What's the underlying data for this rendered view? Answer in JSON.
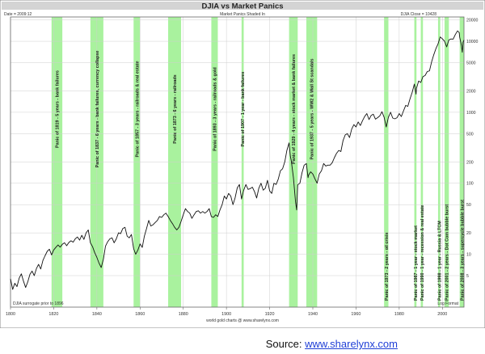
{
  "chart_data": {
    "type": "line",
    "title": "DJIA vs Market Panics",
    "subtitle": "Market Panics Shaded In",
    "date_label": "Date = 2009:12",
    "close_label": "DJIA Close = 10428",
    "footnote": "DJIA surrogate prior to 1896",
    "scale_label": "Log Format",
    "credit": "world gold charts @ www.sharelynx.com",
    "y_scale": "log",
    "xlim": [
      1800,
      2010
    ],
    "ylim": [
      1.8,
      22000
    ],
    "x_ticks": [
      {
        "value": 1800,
        "label": "1800"
      },
      {
        "value": 1820,
        "label": "1820"
      },
      {
        "value": 1840,
        "label": "1840"
      },
      {
        "value": 1860,
        "label": "1860"
      },
      {
        "value": 1880,
        "label": "1880"
      },
      {
        "value": 1900,
        "label": "1900"
      },
      {
        "value": 1920,
        "label": "1920"
      },
      {
        "value": 1940,
        "label": "1940"
      },
      {
        "value": 1960,
        "label": "1960"
      },
      {
        "value": 1980,
        "label": "1980"
      },
      {
        "value": 2000,
        "label": "2000"
      }
    ],
    "y_ticks": [
      {
        "value": 20000,
        "label": "20000"
      },
      {
        "value": 10000,
        "label": "10000"
      },
      {
        "value": 5000,
        "label": "5000"
      },
      {
        "value": 2000,
        "label": "2000"
      },
      {
        "value": 1000,
        "label": "1000"
      },
      {
        "value": 500,
        "label": "500"
      },
      {
        "value": 200,
        "label": "200"
      },
      {
        "value": 100,
        "label": "100"
      },
      {
        "value": 50,
        "label": "50"
      },
      {
        "value": 20,
        "label": "20"
      },
      {
        "value": 10,
        "label": "10"
      },
      {
        "value": 5,
        "label": "5"
      }
    ],
    "panics": [
      {
        "start": 1819,
        "end": 1824,
        "label": "Panic of 1819 - 5 years - bank failures"
      },
      {
        "start": 1837,
        "end": 1843,
        "label": "Panic of 1837 - 6 years - bank failures, currency collapse"
      },
      {
        "start": 1857,
        "end": 1860,
        "label": "Panic of 1857 - 3 years - railroads & real estate"
      },
      {
        "start": 1873,
        "end": 1879,
        "label": "Panic of 1873 - 6 years - railroads"
      },
      {
        "start": 1893,
        "end": 1896,
        "label": "Panic of 1893 - 3 years - railroads & gold"
      },
      {
        "start": 1907,
        "end": 1908,
        "label": "Panic of 1907 - 1 year - bank failures"
      },
      {
        "start": 1929,
        "end": 1933,
        "label": "Panic of 1929 - 4 years - stock market & bank failures"
      },
      {
        "start": 1937,
        "end": 1942,
        "label": "Panic of 1937 - 5 years - WW2 & Wall St scandals"
      },
      {
        "start": 1973,
        "end": 1975,
        "label": "Panic of 1973 - 2 years - oil crisis"
      },
      {
        "start": 1987,
        "end": 1988,
        "label": "Panic of 1987 - 1 year - stock market"
      },
      {
        "start": 1990,
        "end": 1991,
        "label": "Panic of 1990 - 1 year - recession & real estate"
      },
      {
        "start": 1998,
        "end": 1999,
        "label": "Panic of 1998 - 1 year - Russia & LTCM"
      },
      {
        "start": 2001,
        "end": 2003,
        "label": "Panic of 2001 - 2 years - Dot Com bubble burst"
      },
      {
        "start": 2008,
        "end": 2011,
        "label": "Panic of 2008 - 3 years - supercycle bubble burst"
      }
    ],
    "series": [
      {
        "points": [
          [
            1800,
            4.5
          ],
          [
            1801,
            3.2
          ],
          [
            1802,
            3.9
          ],
          [
            1803,
            3.5
          ],
          [
            1804,
            4.6
          ],
          [
            1805,
            5.3
          ],
          [
            1806,
            4.2
          ],
          [
            1807,
            3.4
          ],
          [
            1808,
            4.1
          ],
          [
            1809,
            5.2
          ],
          [
            1810,
            5.8
          ],
          [
            1811,
            5.0
          ],
          [
            1812,
            6.3
          ],
          [
            1813,
            7.2
          ],
          [
            1814,
            6.2
          ],
          [
            1815,
            8.2
          ],
          [
            1816,
            9.5
          ],
          [
            1817,
            11
          ],
          [
            1818,
            11.8
          ],
          [
            1819,
            9.8
          ],
          [
            1820,
            11.5
          ],
          [
            1821,
            12.5
          ],
          [
            1822,
            13.5
          ],
          [
            1823,
            12.6
          ],
          [
            1824,
            13.8
          ],
          [
            1825,
            14.5
          ],
          [
            1826,
            13.2
          ],
          [
            1827,
            14.6
          ],
          [
            1828,
            15.5
          ],
          [
            1829,
            14.8
          ],
          [
            1830,
            16.5
          ],
          [
            1831,
            17.5
          ],
          [
            1832,
            15.8
          ],
          [
            1833,
            18.5
          ],
          [
            1834,
            16.2
          ],
          [
            1835,
            20
          ],
          [
            1836,
            22
          ],
          [
            1837,
            14.5
          ],
          [
            1838,
            12.8
          ],
          [
            1839,
            10.5
          ],
          [
            1840,
            9.0
          ],
          [
            1841,
            7.5
          ],
          [
            1842,
            6.5
          ],
          [
            1843,
            8.5
          ],
          [
            1844,
            13
          ],
          [
            1845,
            15
          ],
          [
            1846,
            16.5
          ],
          [
            1847,
            17
          ],
          [
            1848,
            14.5
          ],
          [
            1849,
            16.5
          ],
          [
            1850,
            20
          ],
          [
            1851,
            19.5
          ],
          [
            1852,
            23
          ],
          [
            1853,
            24
          ],
          [
            1854,
            18
          ],
          [
            1855,
            17
          ],
          [
            1856,
            19
          ],
          [
            1857,
            12
          ],
          [
            1858,
            10
          ],
          [
            1859,
            11.5
          ],
          [
            1860,
            14
          ],
          [
            1861,
            12.5
          ],
          [
            1862,
            18
          ],
          [
            1863,
            23
          ],
          [
            1864,
            30
          ],
          [
            1865,
            25
          ],
          [
            1866,
            26
          ],
          [
            1867,
            28
          ],
          [
            1868,
            30
          ],
          [
            1869,
            34
          ],
          [
            1870,
            33
          ],
          [
            1871,
            36
          ],
          [
            1872,
            38
          ],
          [
            1873,
            34
          ],
          [
            1874,
            30
          ],
          [
            1875,
            27
          ],
          [
            1876,
            24
          ],
          [
            1877,
            22
          ],
          [
            1878,
            24
          ],
          [
            1879,
            29
          ],
          [
            1880,
            36
          ],
          [
            1881,
            44
          ],
          [
            1882,
            40
          ],
          [
            1883,
            38
          ],
          [
            1884,
            32
          ],
          [
            1885,
            36
          ],
          [
            1886,
            40
          ],
          [
            1887,
            41
          ],
          [
            1888,
            38
          ],
          [
            1889,
            40
          ],
          [
            1890,
            38
          ],
          [
            1891,
            40
          ],
          [
            1892,
            44
          ],
          [
            1893,
            34
          ],
          [
            1894,
            33
          ],
          [
            1895,
            36
          ],
          [
            1896,
            34
          ],
          [
            1897,
            42
          ],
          [
            1898,
            50
          ],
          [
            1899,
            66
          ],
          [
            1900,
            60
          ],
          [
            1901,
            72
          ],
          [
            1902,
            66
          ],
          [
            1903,
            50
          ],
          [
            1904,
            62
          ],
          [
            1905,
            86
          ],
          [
            1906,
            96
          ],
          [
            1907,
            60
          ],
          [
            1908,
            80
          ],
          [
            1909,
            96
          ],
          [
            1910,
            82
          ],
          [
            1911,
            84
          ],
          [
            1912,
            88
          ],
          [
            1913,
            76
          ],
          [
            1914,
            62
          ],
          [
            1915,
            85
          ],
          [
            1916,
            100
          ],
          [
            1917,
            80
          ],
          [
            1918,
            85
          ],
          [
            1919,
            110
          ],
          [
            1920,
            78
          ],
          [
            1921,
            72
          ],
          [
            1922,
            100
          ],
          [
            1923,
            96
          ],
          [
            1924,
            115
          ],
          [
            1925,
            150
          ],
          [
            1926,
            160
          ],
          [
            1927,
            200
          ],
          [
            1928,
            290
          ],
          [
            1929,
            370
          ],
          [
            1929.6,
            240
          ],
          [
            1930,
            210
          ],
          [
            1931,
            120
          ],
          [
            1932,
            55
          ],
          [
            1932.5,
            42
          ],
          [
            1933,
            95
          ],
          [
            1934,
            100
          ],
          [
            1935,
            140
          ],
          [
            1936,
            180
          ],
          [
            1937,
            190
          ],
          [
            1937.8,
            120
          ],
          [
            1938,
            130
          ],
          [
            1939,
            145
          ],
          [
            1940,
            135
          ],
          [
            1941,
            115
          ],
          [
            1942,
            100
          ],
          [
            1943,
            135
          ],
          [
            1944,
            150
          ],
          [
            1945,
            190
          ],
          [
            1946,
            175
          ],
          [
            1947,
            180
          ],
          [
            1948,
            180
          ],
          [
            1949,
            195
          ],
          [
            1950,
            230
          ],
          [
            1951,
            265
          ],
          [
            1952,
            290
          ],
          [
            1953,
            280
          ],
          [
            1954,
            400
          ],
          [
            1955,
            480
          ],
          [
            1956,
            500
          ],
          [
            1957,
            440
          ],
          [
            1958,
            580
          ],
          [
            1959,
            670
          ],
          [
            1960,
            620
          ],
          [
            1961,
            730
          ],
          [
            1962,
            650
          ],
          [
            1963,
            760
          ],
          [
            1964,
            870
          ],
          [
            1965,
            960
          ],
          [
            1966,
            790
          ],
          [
            1967,
            900
          ],
          [
            1968,
            940
          ],
          [
            1969,
            800
          ],
          [
            1970,
            840
          ],
          [
            1971,
            890
          ],
          [
            1972,
            1020
          ],
          [
            1973,
            850
          ],
          [
            1974,
            620
          ],
          [
            1975,
            850
          ],
          [
            1976,
            1000
          ],
          [
            1977,
            830
          ],
          [
            1978,
            810
          ],
          [
            1979,
            840
          ],
          [
            1980,
            960
          ],
          [
            1981,
            870
          ],
          [
            1982,
            1050
          ],
          [
            1983,
            1250
          ],
          [
            1984,
            1210
          ],
          [
            1985,
            1540
          ],
          [
            1986,
            1900
          ],
          [
            1987,
            2500
          ],
          [
            1987.8,
            1800
          ],
          [
            1988,
            2170
          ],
          [
            1989,
            2750
          ],
          [
            1990,
            2630
          ],
          [
            1991,
            3170
          ],
          [
            1992,
            3300
          ],
          [
            1993,
            3750
          ],
          [
            1994,
            3830
          ],
          [
            1995,
            5100
          ],
          [
            1996,
            6450
          ],
          [
            1997,
            7900
          ],
          [
            1998,
            9180
          ],
          [
            1999,
            11500
          ],
          [
            2000,
            10800
          ],
          [
            2001,
            10000
          ],
          [
            2002,
            8340
          ],
          [
            2003,
            10450
          ],
          [
            2004,
            10780
          ],
          [
            2005,
            10720
          ],
          [
            2006,
            12460
          ],
          [
            2007,
            14000
          ],
          [
            2007.8,
            13260
          ],
          [
            2008,
            11400
          ],
          [
            2008.8,
            8770
          ],
          [
            2009.2,
            7000
          ],
          [
            2009.6,
            9700
          ],
          [
            2010,
            10428
          ]
        ]
      }
    ]
  },
  "source": {
    "prefix": "Source: ",
    "link_text": "www.sharelynx.com"
  },
  "colors": {
    "panic_band": "#a9f29e",
    "line": "#111111",
    "grid": "#cfcfcf",
    "title_bg": "#d4d4d4",
    "link": "#1f3fd6"
  }
}
